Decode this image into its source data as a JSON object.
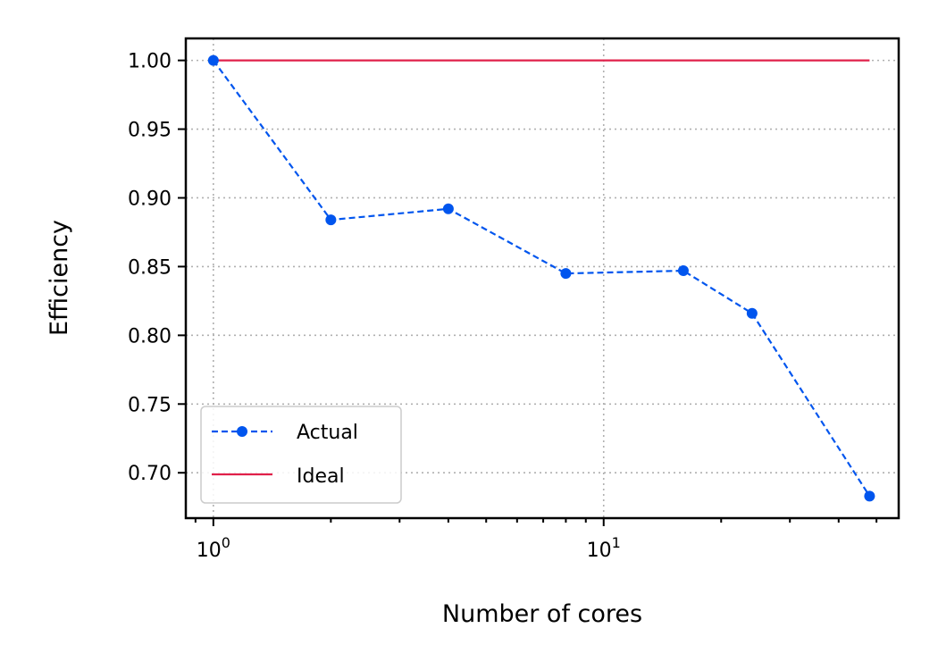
{
  "chart_data": {
    "type": "line",
    "title": "",
    "xlabel": "Number of cores",
    "ylabel": "Efficiency",
    "x_scale": "log",
    "xlim": [
      0.85,
      57
    ],
    "ylim": [
      0.667,
      1.016
    ],
    "x_ticks": [
      {
        "value": 1,
        "base": "10",
        "exp": "0"
      },
      {
        "value": 10,
        "base": "10",
        "exp": "1"
      }
    ],
    "y_ticks": [
      {
        "value": 1.0,
        "label": "1.00"
      },
      {
        "value": 0.95,
        "label": "0.95"
      },
      {
        "value": 0.9,
        "label": "0.90"
      },
      {
        "value": 0.85,
        "label": "0.85"
      },
      {
        "value": 0.8,
        "label": "0.80"
      },
      {
        "value": 0.75,
        "label": "0.75"
      },
      {
        "value": 0.7,
        "label": "0.70"
      }
    ],
    "grid": true,
    "legend_position": "lower-left",
    "series": [
      {
        "name": "Actual",
        "color": "#0055ee",
        "style": "dashed-with-markers",
        "x": [
          1,
          2,
          4,
          8,
          16,
          24,
          48
        ],
        "y": [
          1.0,
          0.884,
          0.892,
          0.845,
          0.847,
          0.816,
          0.683
        ]
      },
      {
        "name": "Ideal",
        "color": "#e0204a",
        "style": "solid",
        "x": [
          1,
          48
        ],
        "y": [
          1.0,
          1.0
        ]
      }
    ]
  }
}
